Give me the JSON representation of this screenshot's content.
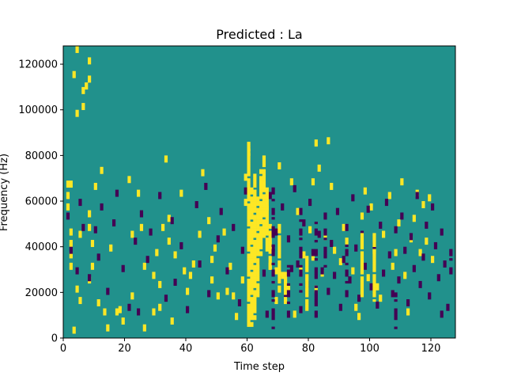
{
  "chart_data": {
    "type": "heatmap",
    "title": "Predicted : La",
    "xlabel": "Time step",
    "ylabel": "Frequency (Hz)",
    "xlim": [
      0,
      128
    ],
    "ylim": [
      0,
      128000
    ],
    "xticks": [
      0,
      20,
      40,
      60,
      80,
      100,
      120
    ],
    "xtick_labels": [
      "0",
      "20",
      "40",
      "60",
      "80",
      "100",
      "120"
    ],
    "yticks": [
      0,
      20000,
      40000,
      60000,
      80000,
      100000,
      120000
    ],
    "ytick_labels": [
      "0",
      "20000",
      "40000",
      "60000",
      "80000",
      "100000",
      "120000"
    ],
    "n_time_steps": 128,
    "n_freq_bins": 128,
    "freq_bin_hz": 1000,
    "colormap": {
      "-1": "#440154",
      "0": "#21918c",
      "1": "#fde725"
    },
    "background_value": 0,
    "grid": false,
    "cells_high": [
      [
        1,
        56
      ],
      [
        1,
        61
      ],
      [
        1,
        66
      ],
      [
        2,
        66
      ],
      [
        2,
        45
      ],
      [
        2,
        40
      ],
      [
        2,
        35
      ],
      [
        2,
        30
      ],
      [
        3,
        114
      ],
      [
        4,
        125
      ],
      [
        4,
        97
      ],
      [
        4,
        20
      ],
      [
        5,
        15
      ],
      [
        3,
        2
      ],
      [
        5,
        44
      ],
      [
        6,
        100
      ],
      [
        6,
        107
      ],
      [
        7,
        109
      ],
      [
        8,
        112
      ],
      [
        8,
        120
      ],
      [
        8,
        53
      ],
      [
        8,
        47
      ],
      [
        8,
        24
      ],
      [
        9,
        40
      ],
      [
        9,
        30
      ],
      [
        10,
        65
      ],
      [
        11,
        14
      ],
      [
        12,
        72
      ],
      [
        13,
        10
      ],
      [
        14,
        3
      ],
      [
        15,
        38
      ],
      [
        17,
        10
      ],
      [
        18,
        11
      ],
      [
        19,
        6
      ],
      [
        21,
        68
      ],
      [
        22,
        44
      ],
      [
        22,
        17
      ],
      [
        24,
        62
      ],
      [
        25,
        47
      ],
      [
        26,
        3
      ],
      [
        26,
        30
      ],
      [
        29,
        10
      ],
      [
        29,
        26
      ],
      [
        30,
        36
      ],
      [
        31,
        22
      ],
      [
        31,
        12
      ],
      [
        32,
        47
      ],
      [
        33,
        77
      ],
      [
        34,
        51
      ],
      [
        34,
        41
      ],
      [
        35,
        6
      ],
      [
        36,
        35
      ],
      [
        38,
        62
      ],
      [
        39,
        28
      ],
      [
        40,
        19
      ],
      [
        41,
        26
      ],
      [
        42,
        31
      ],
      [
        44,
        44
      ],
      [
        45,
        71
      ],
      [
        47,
        50
      ],
      [
        48,
        24
      ],
      [
        48,
        33
      ],
      [
        49,
        38
      ],
      [
        50,
        17
      ],
      [
        52,
        45
      ],
      [
        53,
        19
      ],
      [
        54,
        30
      ],
      [
        55,
        17
      ],
      [
        56,
        8
      ],
      [
        58,
        24
      ],
      [
        59,
        58
      ],
      [
        59,
        69
      ],
      [
        60,
        80
      ],
      [
        61,
        54
      ],
      [
        62,
        62
      ],
      [
        63,
        40
      ],
      [
        64,
        66
      ],
      [
        65,
        44
      ],
      [
        66,
        55
      ],
      [
        67,
        30
      ],
      [
        69,
        15
      ],
      [
        69,
        28
      ],
      [
        70,
        74
      ],
      [
        71,
        26
      ],
      [
        73,
        21
      ],
      [
        74,
        67
      ],
      [
        75,
        9
      ],
      [
        76,
        54
      ],
      [
        77,
        28
      ],
      [
        78,
        35
      ],
      [
        80,
        46
      ],
      [
        81,
        34
      ],
      [
        81,
        67
      ],
      [
        82,
        20
      ],
      [
        82,
        84
      ],
      [
        83,
        73
      ],
      [
        84,
        27
      ],
      [
        85,
        43
      ],
      [
        86,
        85
      ],
      [
        87,
        65
      ],
      [
        88,
        37
      ],
      [
        90,
        32
      ],
      [
        91,
        47
      ],
      [
        92,
        41
      ],
      [
        94,
        28
      ],
      [
        95,
        12
      ],
      [
        96,
        8
      ],
      [
        97,
        52
      ],
      [
        98,
        63
      ],
      [
        99,
        25
      ],
      [
        100,
        56
      ],
      [
        101,
        37
      ],
      [
        102,
        21
      ],
      [
        103,
        16
      ],
      [
        104,
        44
      ],
      [
        106,
        61
      ],
      [
        107,
        30
      ],
      [
        108,
        36
      ],
      [
        109,
        49
      ],
      [
        110,
        67
      ],
      [
        111,
        26
      ],
      [
        112,
        10
      ],
      [
        113,
        42
      ],
      [
        114,
        51
      ],
      [
        115,
        62
      ],
      [
        116,
        36
      ],
      [
        117,
        57
      ],
      [
        118,
        41
      ],
      [
        119,
        60
      ],
      [
        120,
        33
      ]
    ],
    "cells_low": [
      [
        1,
        52
      ],
      [
        2,
        37
      ],
      [
        4,
        28
      ],
      [
        5,
        58
      ],
      [
        6,
        47
      ],
      [
        8,
        25
      ],
      [
        10,
        46
      ],
      [
        11,
        34
      ],
      [
        12,
        56
      ],
      [
        14,
        19
      ],
      [
        16,
        49
      ],
      [
        17,
        62
      ],
      [
        19,
        29
      ],
      [
        21,
        12
      ],
      [
        23,
        41
      ],
      [
        24,
        10
      ],
      [
        25,
        53
      ],
      [
        27,
        33
      ],
      [
        28,
        45
      ],
      [
        31,
        61
      ],
      [
        33,
        16
      ],
      [
        35,
        50
      ],
      [
        36,
        23
      ],
      [
        38,
        39
      ],
      [
        40,
        11
      ],
      [
        43,
        57
      ],
      [
        44,
        31
      ],
      [
        46,
        65
      ],
      [
        47,
        18
      ],
      [
        50,
        42
      ],
      [
        51,
        54
      ],
      [
        53,
        28
      ],
      [
        55,
        47
      ],
      [
        57,
        14
      ],
      [
        58,
        37
      ],
      [
        59,
        63
      ],
      [
        61,
        20
      ],
      [
        63,
        32
      ],
      [
        64,
        51
      ],
      [
        65,
        27
      ],
      [
        66,
        9
      ],
      [
        67,
        61
      ],
      [
        68,
        38
      ],
      [
        69,
        45
      ],
      [
        70,
        24
      ],
      [
        71,
        56
      ],
      [
        72,
        17
      ],
      [
        73,
        42
      ],
      [
        74,
        29
      ],
      [
        75,
        64
      ],
      [
        76,
        31
      ],
      [
        77,
        11
      ],
      [
        78,
        49
      ],
      [
        79,
        22
      ],
      [
        80,
        58
      ],
      [
        81,
        36
      ],
      [
        82,
        15
      ],
      [
        83,
        44
      ],
      [
        84,
        28
      ],
      [
        85,
        52
      ],
      [
        86,
        19
      ],
      [
        87,
        40
      ],
      [
        88,
        26
      ],
      [
        89,
        54
      ],
      [
        90,
        12
      ],
      [
        91,
        33
      ],
      [
        92,
        47
      ],
      [
        93,
        24
      ],
      [
        94,
        60
      ],
      [
        95,
        38
      ],
      [
        96,
        16
      ],
      [
        97,
        44
      ],
      [
        98,
        30
      ],
      [
        99,
        55
      ],
      [
        100,
        21
      ],
      [
        101,
        39
      ],
      [
        102,
        13
      ],
      [
        103,
        48
      ],
      [
        104,
        27
      ],
      [
        105,
        58
      ],
      [
        106,
        35
      ],
      [
        107,
        18
      ],
      [
        108,
        46
      ],
      [
        109,
        24
      ],
      [
        110,
        52
      ],
      [
        111,
        37
      ],
      [
        112,
        14
      ],
      [
        113,
        43
      ],
      [
        114,
        29
      ],
      [
        115,
        61
      ],
      [
        116,
        22
      ],
      [
        117,
        34
      ],
      [
        118,
        48
      ],
      [
        119,
        17
      ],
      [
        120,
        56
      ],
      [
        121,
        39
      ],
      [
        122,
        25
      ],
      [
        123,
        45
      ],
      [
        124,
        31
      ],
      [
        125,
        12
      ]
    ],
    "cols_yellow": [
      {
        "x": 60,
        "y_from": 5,
        "y_to": 86
      },
      {
        "x": 61,
        "y_from": 5,
        "y_to": 66
      },
      {
        "x": 62,
        "y_from": 8,
        "y_to": 72
      },
      {
        "x": 63,
        "y_from": 18,
        "y_to": 62
      },
      {
        "x": 64,
        "y_from": 36,
        "y_to": 74
      },
      {
        "x": 65,
        "y_from": 44,
        "y_to": 80
      },
      {
        "x": 66,
        "y_from": 38,
        "y_to": 66
      },
      {
        "x": 67,
        "y_from": 30,
        "y_to": 50
      },
      {
        "x": 70,
        "y_from": 20,
        "y_to": 50
      },
      {
        "x": 72,
        "y_from": 15,
        "y_to": 30
      },
      {
        "x": 79,
        "y_from": 12,
        "y_to": 36
      },
      {
        "x": 97,
        "y_from": 18,
        "y_to": 46
      },
      {
        "x": 101,
        "y_from": 16,
        "y_to": 46
      }
    ],
    "cols_purple": [
      {
        "x": 68,
        "y_from": 4,
        "y_to": 66
      },
      {
        "x": 73,
        "y_from": 8,
        "y_to": 34
      },
      {
        "x": 77,
        "y_from": 20,
        "y_to": 58
      },
      {
        "x": 82,
        "y_from": 8,
        "y_to": 52
      },
      {
        "x": 85,
        "y_from": 30,
        "y_to": 50
      },
      {
        "x": 92,
        "y_from": 18,
        "y_to": 42
      },
      {
        "x": 108,
        "y_from": 4,
        "y_to": 20
      },
      {
        "x": 123,
        "y_from": 6,
        "y_to": 12
      },
      {
        "x": 126,
        "y_from": 28,
        "y_to": 40
      }
    ]
  }
}
